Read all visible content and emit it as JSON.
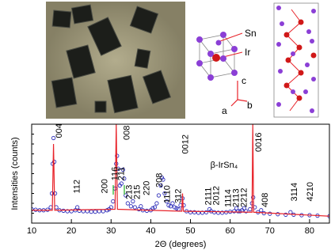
{
  "structure": {
    "labels": [
      "Sn",
      "Ir",
      "c",
      "a",
      "b"
    ]
  },
  "chart_data": {
    "type": "scatter",
    "xlabel": "2Θ (degrees)",
    "ylabel": "Intensities (counts)",
    "xlim": [
      10,
      85
    ],
    "xticks": [
      10,
      20,
      30,
      40,
      50,
      60,
      70,
      80
    ],
    "ylim": [
      0,
      100
    ],
    "series": [
      {
        "color": "#1f1fb4",
        "marker": "circle",
        "x": [
          10,
          11,
          12,
          13,
          14,
          14.8,
          15.1,
          15.3,
          15.5,
          15.7,
          15.9,
          16.2,
          17,
          18,
          19,
          20,
          21,
          21.5,
          22,
          23,
          24,
          25,
          26,
          27,
          28,
          29,
          29.5,
          30,
          30.5,
          31,
          31.3,
          31.5,
          31.8,
          32.2,
          32.6,
          33,
          33.3,
          33.7,
          34.2,
          35,
          35.5,
          36,
          37,
          37.5,
          38,
          39,
          40,
          40.5,
          41,
          41.5,
          42,
          42.5,
          42.8,
          43.1,
          43.5,
          44,
          44.5,
          45,
          45.5,
          46,
          46.5,
          47,
          47.5,
          48,
          48.3,
          49,
          50,
          51,
          52,
          53,
          54,
          54.8,
          55.2,
          56,
          57,
          58,
          59,
          60,
          61,
          61.6,
          62,
          62.5,
          63,
          63.5,
          64,
          65,
          65.5,
          65.8,
          66.2,
          67,
          67.8,
          68.5,
          70,
          72,
          74,
          75.2,
          76,
          78,
          80,
          82,
          85
        ],
        "values": [
          14,
          13.5,
          13,
          13,
          13.5,
          16,
          30,
          60,
          86,
          62,
          30,
          16,
          13,
          12.5,
          12,
          12,
          13,
          16,
          12.5,
          12,
          12,
          11.5,
          11.5,
          12,
          12,
          13,
          14,
          16,
          22,
          35,
          60,
          68,
          55,
          38,
          40,
          54,
          45,
          28,
          20,
          17,
          22,
          16,
          14,
          17,
          13,
          12.5,
          13,
          15,
          16,
          20,
          28,
          38,
          46,
          44,
          30,
          22,
          18,
          17,
          20,
          16,
          15,
          14,
          18,
          25,
          18,
          12,
          11,
          11,
          10.5,
          10.5,
          11,
          14,
          12,
          11,
          10.5,
          10.5,
          11,
          11.5,
          12,
          15,
          12,
          12,
          13,
          15,
          12,
          14,
          20,
          26,
          16,
          11,
          13,
          10,
          9.5,
          9,
          8.5,
          11,
          8.5,
          8,
          8,
          7.5,
          7
        ]
      },
      {
        "color": "#e8232a",
        "marker": "line",
        "x": [
          10,
          15.2,
          15.5,
          15.8,
          31,
          31.3,
          31.6,
          47.8,
          48,
          48.2,
          65.5,
          65.7,
          65.9,
          85
        ],
        "values": [
          13,
          13,
          80,
          13,
          14,
          100,
          14,
          12,
          30,
          12,
          11,
          100,
          11,
          7
        ]
      }
    ],
    "annotations": [
      {
        "text": "004",
        "x": 17,
        "y": 86
      },
      {
        "text": "112",
        "x": 21.5,
        "y": 30
      },
      {
        "text": "200",
        "x": 28.5,
        "y": 30
      },
      {
        "text": "116",
        "x": 31,
        "y": 43
      },
      {
        "text": "211",
        "x": 32.6,
        "y": 43
      },
      {
        "text": "008",
        "x": 34,
        "y": 84
      },
      {
        "text": "213",
        "x": 34.6,
        "y": 24
      },
      {
        "text": "215",
        "x": 36.6,
        "y": 24
      },
      {
        "text": "220",
        "x": 39,
        "y": 28
      },
      {
        "text": "208",
        "x": 42.2,
        "y": 36
      },
      {
        "text": "1110",
        "x": 44.2,
        "y": 20
      },
      {
        "text": "312",
        "x": 47,
        "y": 20
      },
      {
        "text": "0012",
        "x": 48.8,
        "y": 70
      },
      {
        "text": "2111",
        "x": 54.6,
        "y": 18
      },
      {
        "text": "2012",
        "x": 56.6,
        "y": 18
      },
      {
        "text": "1114",
        "x": 59.6,
        "y": 16
      },
      {
        "text": "2113",
        "x": 61.6,
        "y": 16
      },
      {
        "text": "2212",
        "x": 63.6,
        "y": 16
      },
      {
        "text": "0016",
        "x": 67.2,
        "y": 72
      },
      {
        "text": "408",
        "x": 68.8,
        "y": 16
      },
      {
        "text": "3114",
        "x": 76.2,
        "y": 22
      },
      {
        "text": "4210",
        "x": 80.2,
        "y": 22
      }
    ],
    "notes": [
      {
        "text": "β-IrSn₄",
        "x": 55,
        "y": 56
      }
    ]
  }
}
